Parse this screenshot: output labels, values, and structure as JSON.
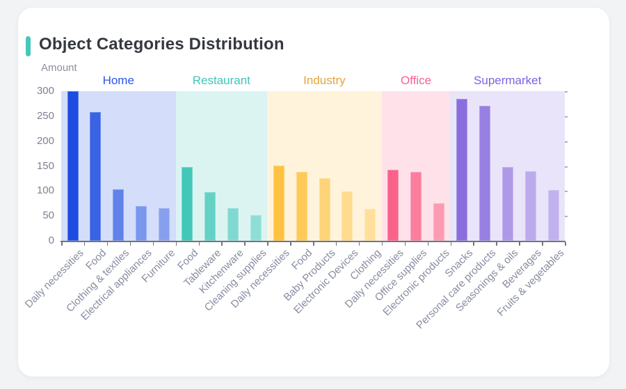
{
  "card": {
    "title": "Object Categories Distribution",
    "accent_color": "#45c8ba",
    "background": "#ffffff",
    "page_background": "#f2f3f5"
  },
  "chart_data": {
    "type": "bar",
    "title": "Object Categories Distribution",
    "xlabel": "",
    "ylabel": "Amount",
    "ylim": [
      0,
      300
    ],
    "y_ticks": [
      0,
      50,
      100,
      150,
      200,
      250,
      300
    ],
    "grid": false,
    "legend_position": "group-headers-above-panels",
    "axis_color": "#70747f",
    "tick_label_color": "#7d8292",
    "category_label_color": "#878ca0",
    "groups": [
      {
        "name": "Home",
        "color": "#1d4ce1",
        "label_color": "#2b54ea",
        "categories": [
          "Daily necessities",
          "Food",
          "Clothing & textiles",
          "Electrical appliances",
          "Furniture"
        ],
        "values": [
          300,
          258,
          103,
          70,
          65
        ]
      },
      {
        "name": "Restaurant",
        "color": "#42c7b9",
        "label_color": "#41c4b6",
        "categories": [
          "Food",
          "Tableware",
          "Kitchenware",
          "Cleaning supplies"
        ],
        "values": [
          148,
          97,
          65,
          51
        ]
      },
      {
        "name": "Industry",
        "color": "#fec240",
        "label_color": "#e3a53c",
        "categories": [
          "Daily necessities",
          "Food",
          "Baby Products",
          "Electronic Devices",
          "Clothing"
        ],
        "values": [
          150,
          138,
          126,
          99,
          64
        ]
      },
      {
        "name": "Office",
        "color": "#fa6189",
        "label_color": "#f7618f",
        "categories": [
          "Daily necessities",
          "Office supplies",
          "Electronic products"
        ],
        "values": [
          142,
          138,
          75
        ]
      },
      {
        "name": "Supermarket",
        "color": "#8a6ede",
        "label_color": "#7d62e0",
        "categories": [
          "Snacks",
          "Personal care products",
          "Seasonings & oils",
          "Beverages",
          "Fruits & vegetables"
        ],
        "values": [
          285,
          271,
          148,
          140,
          102
        ]
      }
    ],
    "panel_alpha": 0.19,
    "bar_alphas": {
      "3": [
        1,
        0.78,
        0.55
      ],
      "4": [
        1,
        0.78,
        0.6,
        0.5
      ],
      "5": [
        1,
        0.85,
        0.63,
        0.49,
        0.42
      ]
    }
  }
}
